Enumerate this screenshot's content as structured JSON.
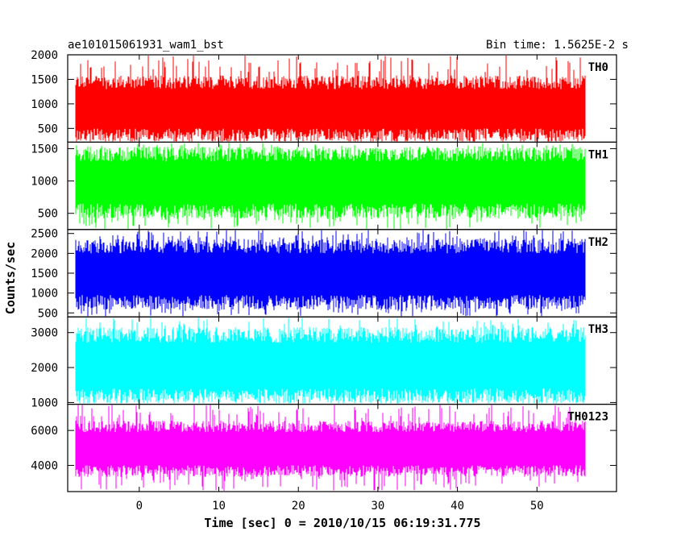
{
  "chart_data": {
    "type": "line",
    "title": "ae101015061931_wam1_bst",
    "subtitle": "Bin time: 1.5625E-2 s",
    "xlabel": "Time [sec] 0 = 2010/10/15 06:19:31.775",
    "ylabel": "Counts/sec",
    "xlim": [
      -9,
      60
    ],
    "x_ticks": [
      0,
      10,
      20,
      30,
      40,
      50
    ],
    "x_range_data": [
      -8,
      56
    ],
    "grid": false,
    "panels": [
      {
        "name": "TH0",
        "color": "#ff0000",
        "ylim": [
          220,
          2000
        ],
        "y_ticks": [
          500,
          1000,
          1500,
          2000
        ],
        "mean": 900,
        "band": [
          500,
          1300
        ],
        "min": 200,
        "max": 2000
      },
      {
        "name": "TH1",
        "color": "#00ff00",
        "ylim": [
          250,
          1600
        ],
        "y_ticks": [
          500,
          1000,
          1500
        ],
        "mean": 1000,
        "band": [
          650,
          1300
        ],
        "min": 250,
        "max": 1600
      },
      {
        "name": "TH2",
        "color": "#0000ff",
        "ylim": [
          400,
          2600
        ],
        "y_ticks": [
          500,
          1000,
          1500,
          2000,
          2500
        ],
        "mean": 1450,
        "band": [
          950,
          2000
        ],
        "min": 400,
        "max": 2600
      },
      {
        "name": "TH3",
        "color": "#00ffff",
        "ylim": [
          950,
          3450
        ],
        "y_ticks": [
          1000,
          2000,
          3000
        ],
        "mean": 2000,
        "band": [
          1400,
          2700
        ],
        "min": 950,
        "max": 3450
      },
      {
        "name": "TH0123",
        "color": "#ff00ff",
        "ylim": [
          2500,
          7500
        ],
        "y_ticks": [
          4000,
          6000
        ],
        "mean": 4900,
        "band": [
          4000,
          5900
        ],
        "min": 2500,
        "max": 7500
      }
    ]
  }
}
